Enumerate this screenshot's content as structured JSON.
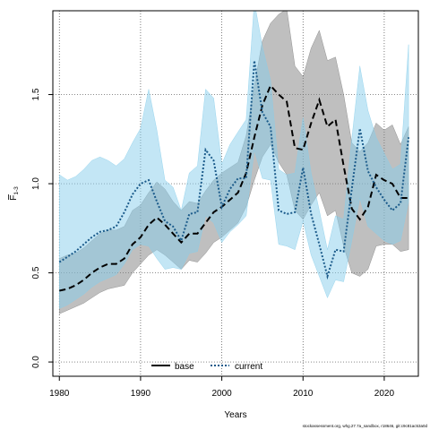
{
  "chart_data": {
    "type": "line",
    "xlabel": "Years",
    "ylabel": "F",
    "ylabel_sub": "1-3",
    "xlim": [
      1979.2,
      2024.2
    ],
    "ylim": [
      -0.08,
      1.97
    ],
    "x_ticks": [
      1980,
      1990,
      2000,
      2010,
      2020
    ],
    "y_ticks": [
      0.0,
      0.5,
      1.0,
      1.5
    ],
    "y_tick_labels": [
      "0.0",
      "0.5",
      "1.0",
      "1.5"
    ],
    "grid": "dotted",
    "legend": {
      "position": "bottom-center"
    },
    "caption": "stockassessment.org, whg.27.7a_sandbox, r18646, git:c9c81ac53a0d",
    "colors": {
      "base": "#000000",
      "current": "#1a5a8a",
      "base_band": "#808080",
      "current_band": "#87ceeb"
    },
    "series": [
      {
        "name": "base",
        "style": "dashed",
        "x": [
          1980,
          1981,
          1982,
          1983,
          1984,
          1985,
          1986,
          1987,
          1988,
          1989,
          1990,
          1991,
          1992,
          1993,
          1994,
          1995,
          1996,
          1997,
          1998,
          1999,
          2000,
          2001,
          2002,
          2003,
          2004,
          2005,
          2006,
          2007,
          2008,
          2009,
          2010,
          2011,
          2012,
          2013,
          2014,
          2015,
          2016,
          2017,
          2018,
          2019,
          2020,
          2021,
          2022,
          2023
        ],
        "values": [
          0.4,
          0.41,
          0.43,
          0.46,
          0.5,
          0.53,
          0.55,
          0.55,
          0.58,
          0.66,
          0.7,
          0.77,
          0.81,
          0.77,
          0.72,
          0.67,
          0.72,
          0.72,
          0.78,
          0.84,
          0.87,
          0.91,
          0.95,
          1.06,
          1.26,
          1.44,
          1.55,
          1.5,
          1.46,
          1.2,
          1.19,
          1.34,
          1.47,
          1.32,
          1.36,
          1.1,
          0.86,
          0.8,
          0.87,
          1.05,
          1.02,
          1.0,
          0.92,
          0.92
        ],
        "lower": [
          0.27,
          0.29,
          0.31,
          0.33,
          0.36,
          0.39,
          0.41,
          0.42,
          0.43,
          0.5,
          0.55,
          0.6,
          0.63,
          0.6,
          0.56,
          0.52,
          0.57,
          0.56,
          0.61,
          0.67,
          0.7,
          0.74,
          0.78,
          0.87,
          1.02,
          1.15,
          1.22,
          1.12,
          1.05,
          0.85,
          0.8,
          0.88,
          0.95,
          0.82,
          0.85,
          0.65,
          0.5,
          0.48,
          0.52,
          0.65,
          0.66,
          0.66,
          0.62,
          0.63
        ],
        "upper": [
          0.58,
          0.6,
          0.61,
          0.64,
          0.68,
          0.72,
          0.74,
          0.74,
          0.76,
          0.85,
          0.88,
          0.95,
          1.01,
          0.97,
          0.9,
          0.85,
          0.9,
          0.89,
          0.96,
          1.02,
          1.06,
          1.09,
          1.12,
          1.27,
          1.55,
          1.8,
          1.9,
          1.95,
          1.98,
          1.66,
          1.6,
          1.76,
          1.86,
          1.69,
          1.71,
          1.5,
          1.23,
          1.18,
          1.23,
          1.34,
          1.3,
          1.33,
          1.22,
          1.32
        ]
      },
      {
        "name": "current",
        "style": "dotted",
        "x": [
          1980,
          1981,
          1982,
          1983,
          1984,
          1985,
          1986,
          1987,
          1988,
          1989,
          1990,
          1991,
          1992,
          1993,
          1994,
          1995,
          1996,
          1997,
          1998,
          1999,
          2000,
          2001,
          2002,
          2003,
          2004,
          2005,
          2006,
          2007,
          2008,
          2009,
          2010,
          2011,
          2012,
          2013,
          2014,
          2015,
          2016,
          2017,
          2018,
          2019,
          2020,
          2021,
          2022,
          2023
        ],
        "values": [
          0.56,
          0.59,
          0.62,
          0.66,
          0.7,
          0.73,
          0.74,
          0.76,
          0.84,
          0.94,
          1.0,
          1.02,
          0.9,
          0.79,
          0.76,
          0.68,
          0.83,
          0.84,
          1.19,
          1.13,
          0.87,
          0.97,
          1.03,
          1.03,
          1.69,
          1.4,
          1.32,
          0.85,
          0.83,
          0.84,
          1.09,
          0.83,
          0.66,
          0.48,
          0.63,
          0.62,
          0.97,
          1.31,
          1.07,
          0.98,
          0.91,
          0.85,
          0.89,
          1.26
        ],
        "lower": [
          0.3,
          0.32,
          0.35,
          0.38,
          0.42,
          0.45,
          0.47,
          0.49,
          0.55,
          0.63,
          0.66,
          0.65,
          0.58,
          0.52,
          0.53,
          0.52,
          0.61,
          0.62,
          0.82,
          0.78,
          0.67,
          0.73,
          0.77,
          0.82,
          1.19,
          1.03,
          1.02,
          0.66,
          0.65,
          0.63,
          0.79,
          0.6,
          0.48,
          0.36,
          0.46,
          0.45,
          0.68,
          0.92,
          0.76,
          0.72,
          0.68,
          0.66,
          0.68,
          0.9
        ],
        "upper": [
          1.05,
          1.02,
          1.04,
          1.08,
          1.13,
          1.15,
          1.13,
          1.1,
          1.14,
          1.23,
          1.31,
          1.53,
          1.3,
          1.02,
          0.98,
          0.85,
          1.06,
          1.1,
          1.53,
          1.48,
          1.11,
          1.22,
          1.29,
          1.36,
          2.02,
          1.77,
          1.58,
          1.08,
          1.05,
          1.06,
          1.37,
          1.06,
          0.85,
          0.63,
          0.82,
          0.8,
          1.25,
          1.66,
          1.41,
          1.26,
          1.17,
          1.08,
          1.11,
          1.78
        ]
      }
    ]
  }
}
